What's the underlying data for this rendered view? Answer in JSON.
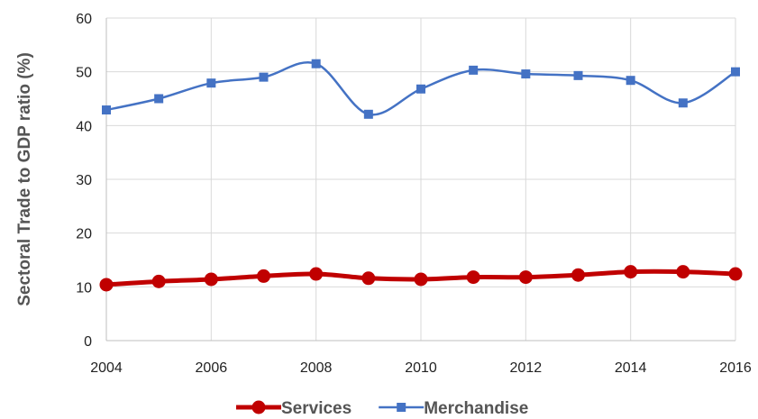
{
  "chart_data": {
    "type": "line",
    "title": "",
    "xlabel": "",
    "ylabel": "Sectoral Trade to GDP ratio (%)",
    "x": [
      2004,
      2005,
      2006,
      2007,
      2008,
      2009,
      2010,
      2011,
      2012,
      2013,
      2014,
      2015,
      2016
    ],
    "x_ticks": [
      "2004",
      "2006",
      "2008",
      "2010",
      "2012",
      "2014",
      "2016"
    ],
    "y_ticks": [
      "0",
      "10",
      "20",
      "30",
      "40",
      "50",
      "60"
    ],
    "xlim": [
      2004,
      2016
    ],
    "ylim": [
      0,
      60
    ],
    "grid": true,
    "legend_position": "bottom",
    "series": [
      {
        "name": "Services",
        "color": "#c00000",
        "marker": "circle",
        "values": [
          10.4,
          11.0,
          11.4,
          12.0,
          12.4,
          11.6,
          11.4,
          11.8,
          11.8,
          12.2,
          12.8,
          12.8,
          12.4
        ]
      },
      {
        "name": "Merchandise",
        "color": "#4472c4",
        "marker": "square",
        "values": [
          42.9,
          45.0,
          47.9,
          49.0,
          51.5,
          42.1,
          46.8,
          50.3,
          49.6,
          49.3,
          48.4,
          44.2,
          50.0
        ]
      }
    ]
  }
}
